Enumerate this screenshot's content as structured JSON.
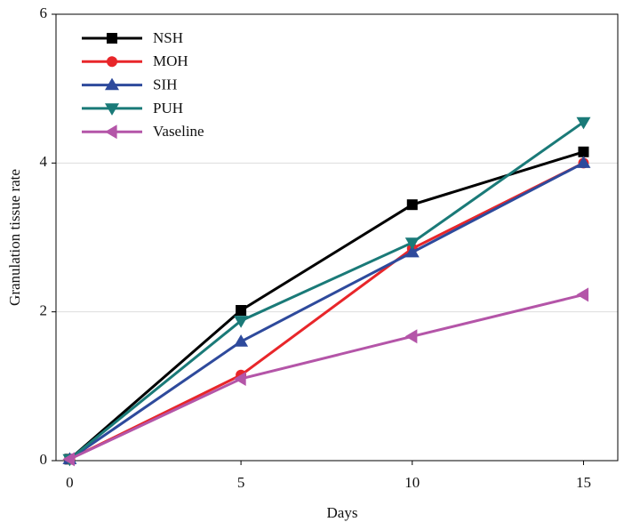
{
  "chart_data": {
    "type": "line",
    "x_label": "Days",
    "y_label": "Granulation tissue rate",
    "x": [
      0,
      5,
      10,
      15
    ],
    "series": [
      {
        "name": "NSH",
        "color": "#000000",
        "marker": "square",
        "values": [
          0.02,
          2.02,
          3.44,
          4.15
        ]
      },
      {
        "name": "MOH",
        "color": "#e8262a",
        "marker": "circle",
        "values": [
          0.02,
          1.15,
          2.85,
          4.0
        ]
      },
      {
        "name": "SIH",
        "color": "#2e4a9c",
        "marker": "triangle-up",
        "values": [
          0.02,
          1.6,
          2.8,
          4.0
        ]
      },
      {
        "name": "PUH",
        "color": "#1a7a78",
        "marker": "triangle-down",
        "values": [
          0.02,
          1.88,
          2.93,
          4.55
        ]
      },
      {
        "name": "Vaseline",
        "color": "#b455a8",
        "marker": "triangle-left",
        "values": [
          0.02,
          1.1,
          1.67,
          2.23
        ]
      }
    ],
    "xlim": [
      -0.4,
      16
    ],
    "ylim": [
      0,
      6
    ],
    "xticks": [
      0,
      5,
      10,
      15
    ],
    "yticks": [
      0,
      2,
      4,
      6
    ],
    "grid": true,
    "legend": "upper-left"
  }
}
